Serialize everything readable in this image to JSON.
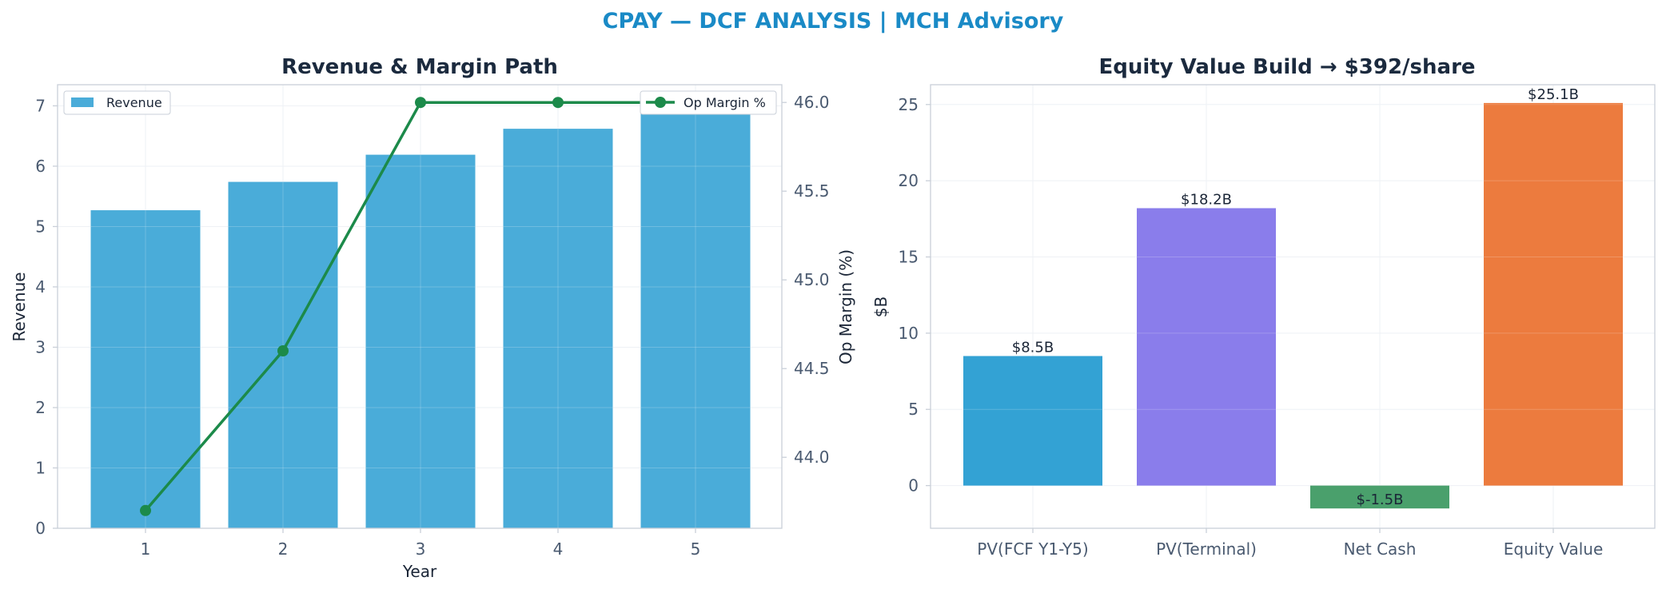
{
  "figure": {
    "suptitle": "CPAY — DCF ANALYSIS | MCH Advisory"
  },
  "colors": {
    "revenue_bar": "#4aacd9",
    "margin_line": "#1c8a4a",
    "axis": "#c9cfd8",
    "grid": "#eef1f5"
  },
  "chart_data": [
    {
      "type": "bar",
      "title": "Revenue & Margin Path",
      "xlabel": "Year",
      "ylabel": "Revenue",
      "y2label": "Op Margin (%)",
      "categories": [
        "1",
        "2",
        "3",
        "4",
        "5"
      ],
      "ylim": [
        0,
        7.35
      ],
      "yticks": [
        0,
        1,
        2,
        3,
        4,
        5,
        6,
        7
      ],
      "y2lim": [
        43.6,
        46.1
      ],
      "y2ticks": [
        44.0,
        44.5,
        45.0,
        45.5,
        46.0
      ],
      "grid": true,
      "series": [
        {
          "name": "Revenue",
          "kind": "bar",
          "axis": "left",
          "values": [
            5.27,
            5.74,
            6.19,
            6.62,
            7.08
          ]
        },
        {
          "name": "Op Margin %",
          "kind": "line",
          "axis": "right",
          "values": [
            43.7,
            44.6,
            46.0,
            46.0,
            46.0
          ]
        }
      ],
      "legend": [
        "top-left",
        "top-right"
      ]
    },
    {
      "type": "bar",
      "title": "Equity Value Build → $392/share",
      "xlabel": "",
      "ylabel": "$B",
      "categories": [
        "PV(FCF Y1-Y5)",
        "PV(Terminal)",
        "Net Cash",
        "Equity Value"
      ],
      "values": [
        8.5,
        18.2,
        -1.5,
        25.1
      ],
      "data_labels": [
        "$8.5B",
        "$18.2B",
        "$-1.5B",
        "$25.1B"
      ],
      "colors": [
        "#33a2d4",
        "#8a7deb",
        "#4aa06c",
        "#ec7b3e"
      ],
      "ylim": [
        -2.8,
        26.3
      ],
      "yticks": [
        0,
        5,
        10,
        15,
        20,
        25
      ],
      "grid": true
    }
  ]
}
